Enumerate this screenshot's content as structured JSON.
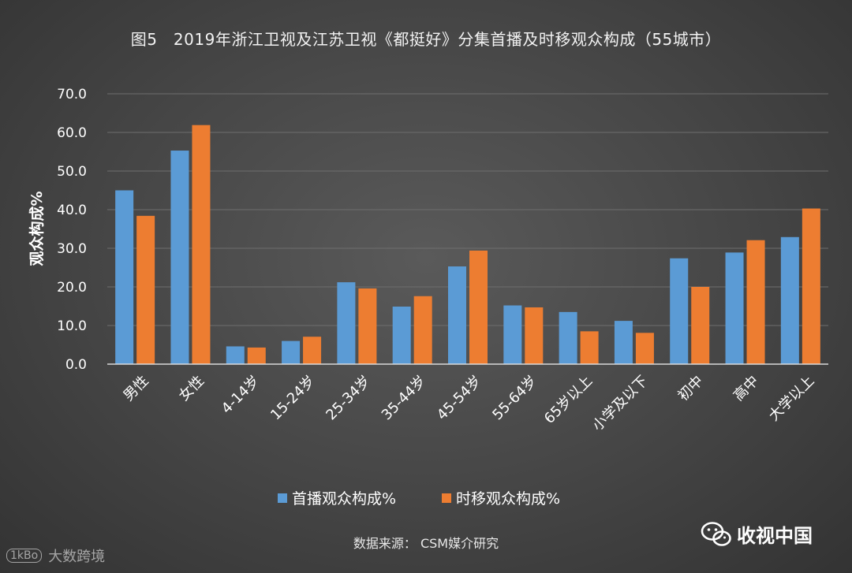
{
  "chart_data": {
    "type": "bar",
    "title": "图5　2019年浙江卫视及江苏卫视《都挺好》分集首播及时移观众构成（55城市）",
    "ylabel": "观众构成%",
    "xlabel": "",
    "ylim": [
      0,
      70
    ],
    "yticks": [
      "0.0",
      "10.0",
      "20.0",
      "30.0",
      "40.0",
      "50.0",
      "60.0",
      "70.0"
    ],
    "grid": true,
    "legend_position": "bottom",
    "categories": [
      "男性",
      "女性",
      "4-14岁",
      "15-24岁",
      "25-34岁",
      "35-44岁",
      "45-54岁",
      "55-64岁",
      "65岁以上",
      "小学及以下",
      "初中",
      "高中",
      "大学以上"
    ],
    "series": [
      {
        "name": "首播观众构成%",
        "color": "#5b9bd5",
        "values": [
          45.0,
          55.3,
          4.6,
          6.0,
          21.2,
          14.9,
          25.3,
          15.2,
          13.5,
          11.2,
          27.4,
          28.9,
          32.9
        ]
      },
      {
        "name": "时移观众构成%",
        "color": "#ed7d31",
        "values": [
          38.4,
          61.9,
          4.3,
          7.1,
          19.6,
          17.6,
          29.4,
          14.7,
          8.5,
          8.1,
          20.0,
          32.1,
          40.3
        ]
      }
    ]
  },
  "source_text": "数据来源：  CSM媒介研究",
  "watermark_right": "收视中国",
  "watermark_left": "大数跨境",
  "watermark_left_logo": "1kBo"
}
